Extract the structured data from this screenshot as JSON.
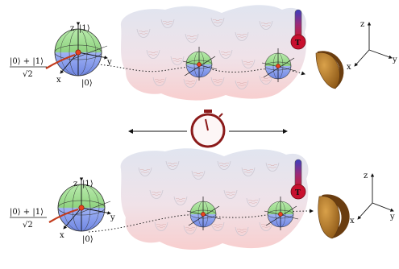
{
  "panels": [
    {
      "state": {
        "numerator": "|0⟩ + |1⟩",
        "denominator": "√2"
      },
      "bloch": {
        "axis_z": "z",
        "axis_y": "y",
        "axis_x": "x",
        "ket_top": "|1⟩",
        "ket_bottom": "|0⟩"
      },
      "thermometer_label": "T",
      "frame": {
        "z": "z",
        "y": "y",
        "x": "x"
      }
    },
    {
      "state": {
        "numerator": "|0⟩ + |1⟩",
        "denominator": "√2"
      },
      "bloch": {
        "axis_z": "z",
        "axis_y": "y",
        "axis_x": "x",
        "ket_top": "|1⟩",
        "ket_bottom": "|0⟩"
      },
      "thermometer_label": "T",
      "frame": {
        "z": "z",
        "y": "y",
        "x": "x"
      }
    }
  ],
  "colors": {
    "sphere_top": "#9fdc8f",
    "sphere_bottom": "#8fa6f0",
    "environment_top": "#dfe3ef",
    "environment_bottom": "#f6cccc",
    "thermometer_bulb": "#c8102e",
    "detector": "#b5762a",
    "stopwatch": "#8b1a1a"
  }
}
